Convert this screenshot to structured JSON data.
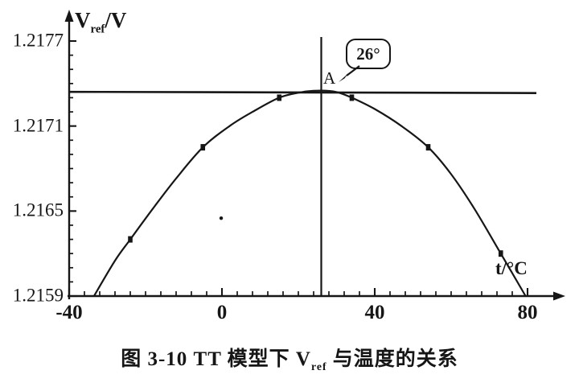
{
  "figure": {
    "y_axis_title": {
      "main": "V",
      "sub": "ref",
      "rest": "/V"
    },
    "x_axis_title": "t/°C",
    "caption": {
      "prefix": "图 3-10  TT 模型下 V",
      "sub": "ref",
      "suffix": " 与温度的关系"
    },
    "annotations": {
      "callout_text": "26°",
      "point_label": "A"
    }
  },
  "colors": {
    "ink": "#161616",
    "background": "#ffffff"
  },
  "chart_data": {
    "type": "line",
    "title": "图 3-10 TT 模型下 Vref 与温度的关系",
    "xlabel": "t/°C",
    "ylabel": "Vref/V",
    "xlim": [
      -40,
      80
    ],
    "ylim": [
      1.2159,
      1.2177
    ],
    "grid": false,
    "legend": false,
    "x_minor_step": 4,
    "y_minor_step": 0.0001,
    "x_ticks": [
      {
        "t": -40,
        "label": "-40"
      },
      {
        "t": 0,
        "label": "0"
      },
      {
        "t": 40,
        "label": "40"
      },
      {
        "t": 80,
        "label": "80"
      }
    ],
    "y_ticks": [
      {
        "v": 1.2159,
        "label": "1.2159"
      },
      {
        "v": 1.2165,
        "label": "1.2165"
      },
      {
        "v": 1.2171,
        "label": "1.2171"
      },
      {
        "v": 1.2177,
        "label": "1.2177"
      }
    ],
    "ref_line_v": 1.21735,
    "vline_t": 26,
    "peak": {
      "t": 26,
      "v": 1.21735,
      "label": "A"
    },
    "series": [
      {
        "name": "Vref",
        "marker": "square",
        "points": [
          [
            -24,
            1.2163
          ],
          [
            -5,
            1.21695
          ],
          [
            15,
            1.2173
          ],
          [
            34,
            1.2173
          ],
          [
            54,
            1.21695
          ],
          [
            73,
            1.2162
          ]
        ]
      }
    ],
    "curve": [
      [
        -33.5,
        1.2159
      ],
      [
        -28,
        1.21615
      ],
      [
        -24,
        1.2163
      ],
      [
        -18,
        1.21652
      ],
      [
        -12,
        1.21673
      ],
      [
        -5,
        1.21695
      ],
      [
        2,
        1.2171
      ],
      [
        8,
        1.2172
      ],
      [
        15,
        1.2173
      ],
      [
        21,
        1.21734
      ],
      [
        26,
        1.21735
      ],
      [
        30,
        1.21734
      ],
      [
        34,
        1.2173
      ],
      [
        40,
        1.21722
      ],
      [
        47,
        1.2171
      ],
      [
        54,
        1.21695
      ],
      [
        60,
        1.21676
      ],
      [
        66,
        1.21652
      ],
      [
        73,
        1.2162
      ],
      [
        79.5,
        1.2159
      ]
    ],
    "speck_dot": [
      -0.2,
      1.21645
    ]
  }
}
